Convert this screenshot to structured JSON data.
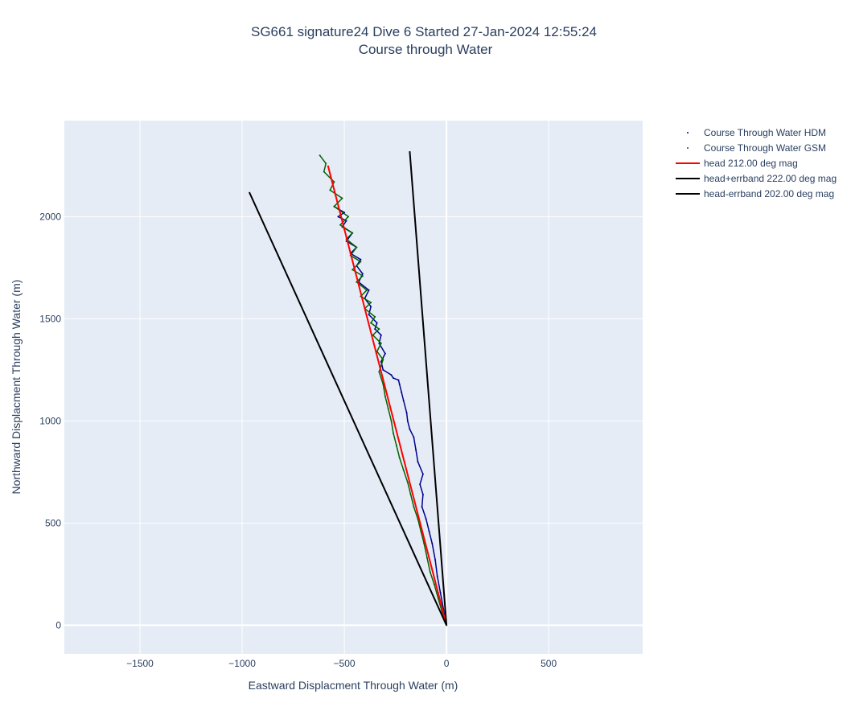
{
  "chart_data": {
    "type": "line",
    "title": [
      "SG661 signature24 Dive 6 Started 27-Jan-2024 12:55:24",
      "Course through Water"
    ],
    "xlabel": "Eastward Displacment Through Water (m)",
    "ylabel": "Northward Displacment Through Water (m)",
    "xlim": [
      -1870,
      960
    ],
    "ylim": [
      -140,
      2470
    ],
    "xticks": [
      -1500,
      -1000,
      -500,
      0,
      500
    ],
    "xtick_labels": [
      "−1500",
      "−1000",
      "−500",
      "0",
      "500"
    ],
    "yticks": [
      0,
      500,
      1000,
      1500,
      2000
    ],
    "ytick_labels": [
      "0",
      "500",
      "1000",
      "1500",
      "2000"
    ],
    "grid": true,
    "legend_position": "top-right",
    "series": [
      {
        "name": "Course Through Water HDM",
        "style": "dotted-markers",
        "color": "#00008b",
        "x": [
          0,
          -15,
          -30,
          -45,
          -55,
          -70,
          -85,
          -100,
          -120,
          -115,
          -130,
          -115,
          -140,
          -150,
          -160,
          -180,
          -190,
          -195,
          -210,
          -220,
          -230,
          -235,
          -260,
          -270,
          -310,
          -320,
          -300,
          -330,
          -320,
          -350,
          -340,
          -380,
          -370,
          -400,
          -380,
          -430,
          -410,
          -440,
          -420,
          -470,
          -440,
          -490,
          -460,
          -510,
          -490,
          -530,
          -500,
          -550
        ],
        "y": [
          0,
          80,
          160,
          240,
          320,
          400,
          460,
          520,
          580,
          640,
          690,
          740,
          800,
          860,
          920,
          960,
          1000,
          1040,
          1100,
          1140,
          1180,
          1200,
          1210,
          1225,
          1250,
          1290,
          1330,
          1380,
          1420,
          1450,
          1480,
          1520,
          1560,
          1600,
          1640,
          1680,
          1720,
          1760,
          1790,
          1820,
          1850,
          1880,
          1920,
          1950,
          1980,
          2000,
          2020,
          2050
        ]
      },
      {
        "name": "Course Through Water GSM",
        "style": "dotted-markers",
        "color": "#006400",
        "x": [
          0,
          -20,
          -40,
          -60,
          -80,
          -95,
          -110,
          -125,
          -140,
          -160,
          -175,
          -190,
          -210,
          -230,
          -245,
          -260,
          -270,
          -285,
          -300,
          -310,
          -330,
          -310,
          -340,
          -320,
          -360,
          -330,
          -370,
          -350,
          -400,
          -370,
          -420,
          -390,
          -440,
          -410,
          -460,
          -420,
          -470,
          -440,
          -490,
          -460,
          -520,
          -480,
          -550,
          -510,
          -570,
          -550,
          -600,
          -590,
          -620
        ],
        "y": [
          0,
          60,
          130,
          200,
          260,
          330,
          400,
          460,
          520,
          580,
          640,
          700,
          760,
          820,
          880,
          940,
          1000,
          1060,
          1120,
          1180,
          1240,
          1300,
          1340,
          1380,
          1420,
          1450,
          1480,
          1510,
          1550,
          1580,
          1610,
          1640,
          1680,
          1710,
          1740,
          1780,
          1810,
          1850,
          1890,
          1920,
          1960,
          2000,
          2050,
          2090,
          2130,
          2170,
          2220,
          2260,
          2300
        ]
      },
      {
        "name": "head 212.00 deg mag",
        "style": "line",
        "color": "#ff0000",
        "x": [
          0,
          -580
        ],
        "y": [
          0,
          2250
        ]
      },
      {
        "name": "head+errband 222.00 deg mag",
        "style": "line",
        "color": "#000000",
        "x": [
          0,
          -965
        ],
        "y": [
          0,
          2120
        ]
      },
      {
        "name": "head-errband 202.00 deg mag",
        "style": "line",
        "color": "#000000",
        "x": [
          0,
          -180
        ],
        "y": [
          0,
          2320
        ]
      }
    ]
  }
}
